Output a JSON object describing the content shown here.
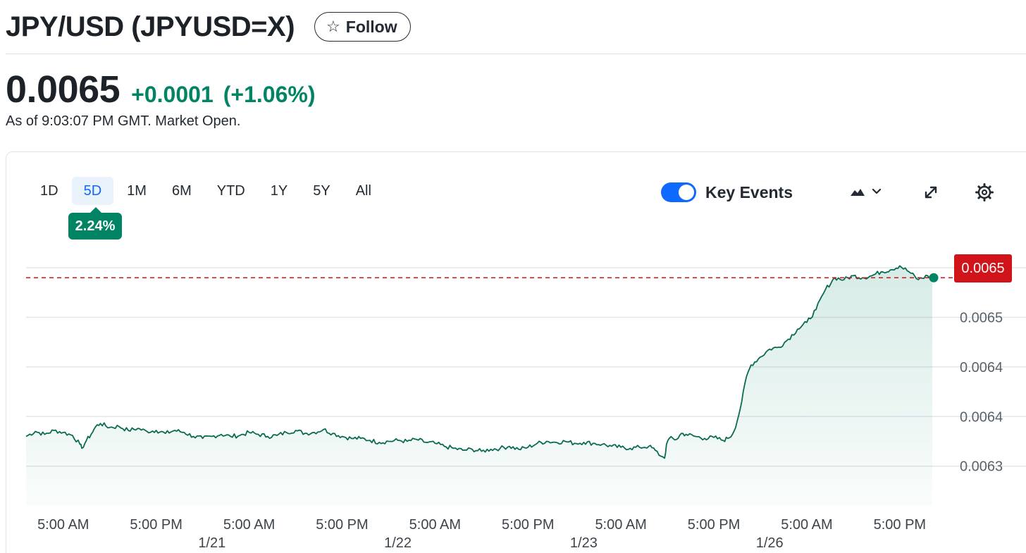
{
  "header": {
    "title": "JPY/USD (JPYUSD=X)",
    "follow_label": "Follow"
  },
  "quote": {
    "price": "0.0065",
    "change": "+0.0001",
    "change_pct": "(+1.06%)",
    "as_of": "As of 9:03:07 PM GMT. Market Open."
  },
  "tabs": [
    {
      "label": "1D",
      "active": false
    },
    {
      "label": "5D",
      "active": true
    },
    {
      "label": "1M",
      "active": false
    },
    {
      "label": "6M",
      "active": false
    },
    {
      "label": "YTD",
      "active": false
    },
    {
      "label": "1Y",
      "active": false
    },
    {
      "label": "5Y",
      "active": false
    },
    {
      "label": "All",
      "active": false
    }
  ],
  "period_change_badge": "2.24%",
  "key_events": {
    "label": "Key Events",
    "enabled": true
  },
  "icons": {
    "chart_type": "mountain-chart-icon",
    "expand": "expand-icon",
    "settings": "gear-icon",
    "follow": "star-icon"
  },
  "colors": {
    "up": "#008463",
    "accent": "#0f69ff",
    "current_price": "#d1131a"
  },
  "chart_data": {
    "type": "area",
    "current_price_label": "0.0065",
    "y_tick_labels": [
      "0.0065",
      "0.0065",
      "0.0064",
      "0.0064",
      "0.0063"
    ],
    "y_tick_values": [
      0.00657,
      0.00652,
      0.00647,
      0.00642,
      0.00637
    ],
    "ylim": [
      0.00633,
      0.00659
    ],
    "current_value": 0.00656,
    "x_tick_labels": [
      "5:00 AM",
      "5:00 PM",
      "5:00 AM",
      "5:00 PM",
      "5:00 AM",
      "5:00 PM",
      "5:00 AM",
      "5:00 PM",
      "5:00 AM",
      "5:00 PM"
    ],
    "date_labels": [
      "1/21",
      "1/22",
      "1/23",
      "1/26"
    ],
    "x_domain": [
      0,
      97.5
    ],
    "x_tick_positions": [
      4,
      14,
      24,
      34,
      44,
      54,
      64,
      74,
      84,
      94
    ],
    "date_positions": [
      20,
      40,
      60,
      80
    ],
    "points": [
      [
        0,
        0.0064
      ],
      [
        1,
        0.006405
      ],
      [
        2,
        0.006402
      ],
      [
        3,
        0.006406
      ],
      [
        4,
        0.006404
      ],
      [
        5,
        0.006401
      ],
      [
        5.8,
        0.006392
      ],
      [
        6,
        0.006388
      ],
      [
        6.5,
        0.006396
      ],
      [
        7,
        0.006402
      ],
      [
        7.5,
        0.00641
      ],
      [
        8,
        0.006413
      ],
      [
        9,
        0.006409
      ],
      [
        10,
        0.00641
      ],
      [
        11,
        0.006406
      ],
      [
        12,
        0.006408
      ],
      [
        13,
        0.006405
      ],
      [
        14,
        0.006406
      ],
      [
        15,
        0.006403
      ],
      [
        16,
        0.006406
      ],
      [
        17,
        0.006404
      ],
      [
        18,
        0.0064
      ],
      [
        19,
        0.006398
      ],
      [
        20,
        0.0064
      ],
      [
        21,
        0.006402
      ],
      [
        22,
        0.0064
      ],
      [
        23,
        0.006401
      ],
      [
        24,
        0.006404
      ],
      [
        25,
        0.006402
      ],
      [
        26,
        0.0064
      ],
      [
        27,
        0.006401
      ],
      [
        28,
        0.006404
      ],
      [
        29,
        0.006406
      ],
      [
        30,
        0.006403
      ],
      [
        31,
        0.006404
      ],
      [
        32,
        0.006407
      ],
      [
        33,
        0.006403
      ],
      [
        34,
        0.0064
      ],
      [
        35,
        0.006398
      ],
      [
        36,
        0.006398
      ],
      [
        37,
        0.006396
      ],
      [
        38,
        0.006394
      ],
      [
        39,
        0.006395
      ],
      [
        40,
        0.006396
      ],
      [
        41,
        0.006395
      ],
      [
        42,
        0.006397
      ],
      [
        43,
        0.006394
      ],
      [
        44,
        0.006393
      ],
      [
        45,
        0.00639
      ],
      [
        46,
        0.006388
      ],
      [
        47,
        0.006386
      ],
      [
        48,
        0.006387
      ],
      [
        49,
        0.006385
      ],
      [
        50,
        0.006387
      ],
      [
        51,
        0.006388
      ],
      [
        52,
        0.00639
      ],
      [
        53,
        0.006387
      ],
      [
        54,
        0.006389
      ],
      [
        55,
        0.006393
      ],
      [
        56,
        0.006395
      ],
      [
        57,
        0.006394
      ],
      [
        58,
        0.006395
      ],
      [
        59,
        0.006393
      ],
      [
        60,
        0.006394
      ],
      [
        61,
        0.006393
      ],
      [
        62,
        0.006392
      ],
      [
        63,
        0.00639
      ],
      [
        64,
        0.006389
      ],
      [
        65,
        0.006388
      ],
      [
        66,
        0.006389
      ],
      [
        67,
        0.00639
      ],
      [
        67.7,
        0.006386
      ],
      [
        68.3,
        0.00638
      ],
      [
        68.7,
        0.006378
      ],
      [
        68.9,
        0.006392
      ],
      [
        69.2,
        0.006398
      ],
      [
        70,
        0.006397
      ],
      [
        70.5,
        0.006403
      ],
      [
        71,
        0.006402
      ],
      [
        72,
        0.0064
      ],
      [
        73,
        0.006398
      ],
      [
        74,
        0.006399
      ],
      [
        75,
        0.006396
      ],
      [
        75.5,
        0.006398
      ],
      [
        76,
        0.006402
      ],
      [
        76.5,
        0.006415
      ],
      [
        77,
        0.006435
      ],
      [
        77.5,
        0.00646
      ],
      [
        78,
        0.006472
      ],
      [
        79,
        0.00648
      ],
      [
        80,
        0.006488
      ],
      [
        81,
        0.00649
      ],
      [
        82,
        0.006498
      ],
      [
        83,
        0.006508
      ],
      [
        84,
        0.006515
      ],
      [
        85,
        0.006528
      ],
      [
        86,
        0.006548
      ],
      [
        87,
        0.00656
      ],
      [
        88,
        0.006558
      ],
      [
        89,
        0.006562
      ],
      [
        90,
        0.00656
      ],
      [
        91,
        0.006562
      ],
      [
        92,
        0.006566
      ],
      [
        93,
        0.006568
      ],
      [
        94,
        0.006572
      ],
      [
        95,
        0.006566
      ],
      [
        96,
        0.006558
      ],
      [
        97,
        0.006562
      ],
      [
        97.5,
        0.00656
      ]
    ]
  }
}
